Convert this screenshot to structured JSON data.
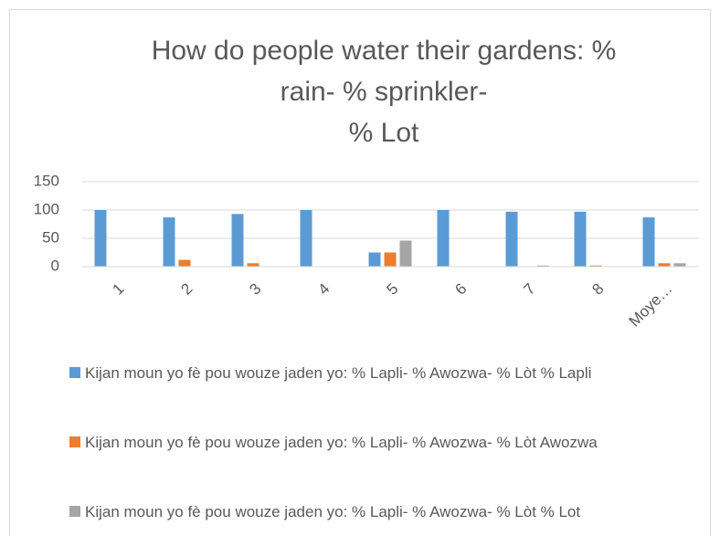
{
  "chart_data": {
    "type": "bar",
    "title": [
      "How do people water their gardens: %",
      "rain- % sprinkler-",
      "% Lot"
    ],
    "categories": [
      "1",
      "2",
      "3",
      "4",
      "5",
      "6",
      "7",
      "8",
      "Moye…"
    ],
    "series": [
      {
        "name": "Kijan moun yo fè pou wouze jaden yo: % Lapli- % Awozwa- % Lòt % Lapli",
        "color": "#5b9bd5",
        "values": [
          100,
          87,
          93,
          100,
          25,
          100,
          97,
          97,
          87
        ]
      },
      {
        "name": "Kijan moun yo fè pou wouze jaden yo: % Lapli- % Awozwa- % Lòt Awozwa",
        "color": "#ed7d31",
        "values": [
          0,
          12,
          6,
          0,
          25,
          0,
          0,
          2,
          6
        ]
      },
      {
        "name": "Kijan moun yo fè pou wouze jaden yo: % Lapli- % Awozwa- % Lòt % Lot",
        "color": "#a5a5a5",
        "values": [
          0,
          0,
          0,
          0,
          46,
          0,
          2,
          0,
          6
        ]
      }
    ],
    "ylim": [
      0,
      150
    ],
    "yticks": [
      0,
      50,
      100,
      150
    ],
    "grid": true,
    "legend": "bottom"
  }
}
